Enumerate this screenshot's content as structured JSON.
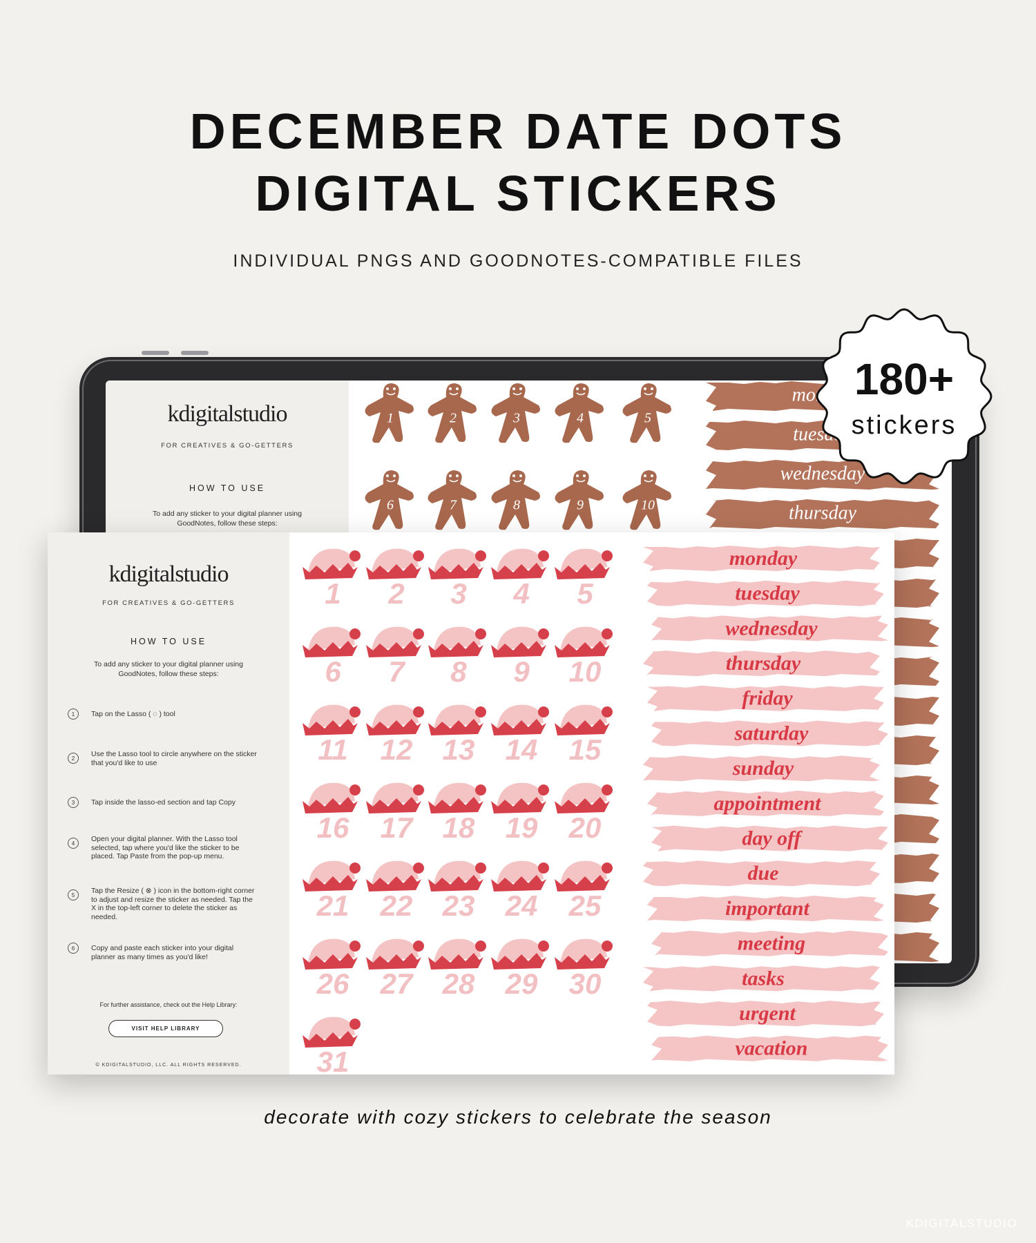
{
  "header": {
    "title_line1": "DECEMBER DATE DOTS",
    "title_line2": "DIGITAL STICKERS",
    "subtitle": "INDIVIDUAL PNGS AND GOODNOTES-COMPATIBLE FILES"
  },
  "badge": {
    "count": "180+",
    "label": "stickers"
  },
  "back_sheet": {
    "brand": "kdigitalstudio",
    "tagline": "FOR CREATIVES & GO-GETTERS",
    "section": "HOW TO USE",
    "intro": "To add any sticker to your digital planner using GoodNotes, follow these steps:",
    "gingerbread": [
      1,
      2,
      3,
      4,
      5,
      6,
      7,
      8,
      9,
      10
    ],
    "labels": [
      "monday",
      "tuesday",
      "wednesday",
      "thursday"
    ]
  },
  "front_sheet": {
    "brand": "kdigitalstudio",
    "tagline": "FOR CREATIVES & GO-GETTERS",
    "section": "HOW TO USE",
    "intro": "To add any sticker to your digital planner using GoodNotes, follow these steps:",
    "steps": [
      {
        "number": 1,
        "text": "Tap on the Lasso ( ◌ ) tool"
      },
      {
        "number": 2,
        "text": "Use the Lasso tool to circle anywhere on the sticker that you'd like to use"
      },
      {
        "number": 3,
        "text": "Tap inside the lasso-ed section and tap Copy"
      },
      {
        "number": 4,
        "text": "Open your digital planner. With the Lasso tool selected, tap where you'd like the sticker to be placed. Tap Paste from the pop-up menu."
      },
      {
        "number": 5,
        "text": "Tap the Resize ( ⊗ ) icon in the bottom-right corner to adjust and resize the sticker as needed. Tap the X in the top-left corner to delete the sticker as needed."
      },
      {
        "number": 6,
        "text": "Copy and paste each sticker into your digital planner as many times as you'd like!"
      }
    ],
    "help_text": "For further assistance, check out the Help Library:",
    "help_button": "VISIT HELP LIBRARY",
    "copyright": "© KDIGITALSTUDIO, LLC. ALL RIGHTS RESERVED.",
    "date_dots": [
      1,
      2,
      3,
      4,
      5,
      6,
      7,
      8,
      9,
      10,
      11,
      12,
      13,
      14,
      15,
      16,
      17,
      18,
      19,
      20,
      21,
      22,
      23,
      24,
      25,
      26,
      27,
      28,
      29,
      30,
      31
    ],
    "labels": [
      "monday",
      "tuesday",
      "wednesday",
      "thursday",
      "friday",
      "saturday",
      "sunday",
      "appointment",
      "day off",
      "due",
      "important",
      "meeting",
      "tasks",
      "urgent",
      "vacation"
    ]
  },
  "footer": {
    "caption": "decorate with cozy stickers to celebrate the season",
    "watermark": "KDIGITALSTUDIO"
  }
}
